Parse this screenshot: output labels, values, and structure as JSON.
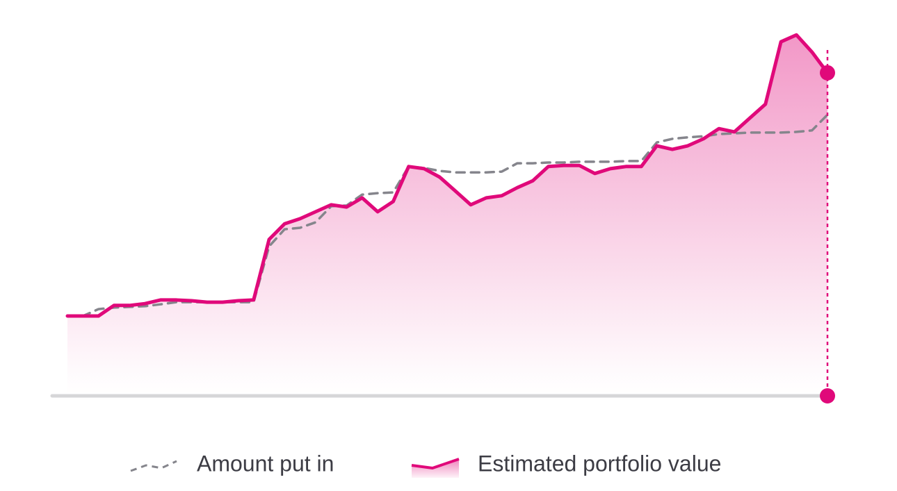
{
  "chart_data": {
    "type": "line",
    "ylim": [
      0,
      100
    ],
    "series": [
      {
        "name": "Amount put in",
        "color": "#85858c",
        "dashed": true,
        "values": [
          21.9,
          21.9,
          23.8,
          24.2,
          24.4,
          24.6,
          25.1,
          25.7,
          25.7,
          25.7,
          25.7,
          25.7,
          25.7,
          41,
          45.7,
          46.1,
          47.6,
          52,
          52.2,
          55.2,
          55.6,
          55.8,
          62.9,
          62.5,
          61.7,
          61.3,
          61.3,
          61.3,
          61.5,
          63.8,
          63.8,
          64,
          64,
          64.2,
          64.2,
          64.2,
          64.4,
          64.4,
          69.5,
          70.5,
          70.9,
          71.2,
          71.8,
          72,
          72.2,
          72.2,
          72.2,
          72.4,
          72.8,
          77.1
        ]
      },
      {
        "name": "Estimated portfolio value",
        "color": "#e0097a",
        "fill": true,
        "values": [
          21.9,
          21.9,
          21.9,
          24.8,
          24.8,
          25.3,
          26.3,
          26.3,
          26.1,
          25.7,
          25.7,
          26.1,
          26.3,
          42.9,
          47.2,
          48.6,
          50.5,
          52.4,
          51.8,
          54.3,
          50.5,
          53.3,
          62.9,
          62.3,
          60,
          56.2,
          52.4,
          54.3,
          54.9,
          57.1,
          59,
          62.9,
          63.2,
          63.2,
          61,
          62.3,
          62.9,
          62.9,
          68.6,
          67.6,
          68.6,
          70.5,
          73.3,
          72.4,
          76.2,
          80,
          97.1,
          99,
          94.3,
          88.6
        ]
      }
    ],
    "legend": "bottom"
  }
}
